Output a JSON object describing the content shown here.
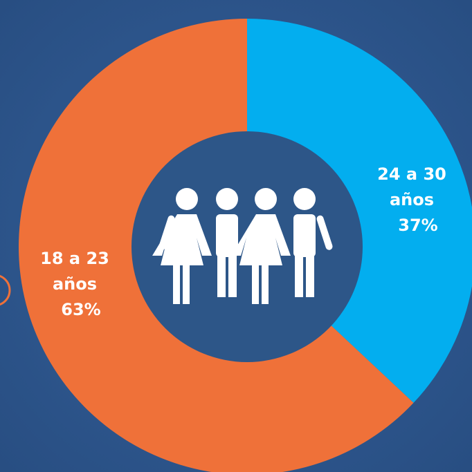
{
  "chart_data": {
    "type": "donut",
    "categories": [
      "24 a 30 años",
      "18 a 23 años"
    ],
    "values": [
      37,
      63
    ],
    "value_labels": [
      "37%",
      "63%"
    ],
    "colors": [
      "#03aeef",
      "#ef7139"
    ]
  }
}
